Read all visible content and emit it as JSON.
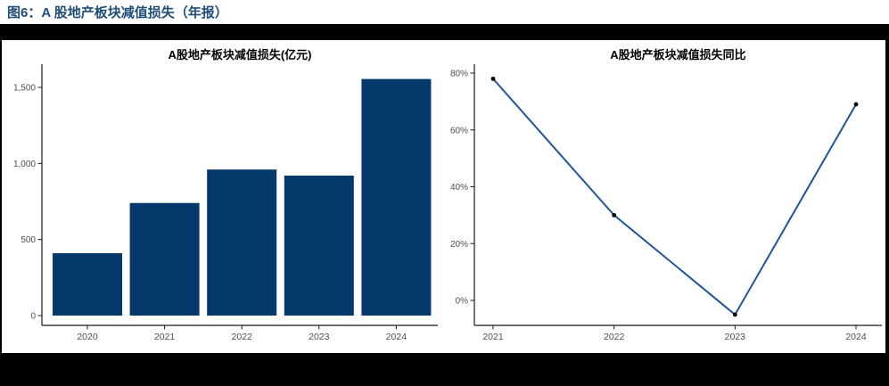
{
  "figure": {
    "caption": "图6：A 股地产板块减值损失（年报）"
  },
  "chart_data": [
    {
      "type": "bar",
      "title": "A股地产板块减值损失(亿元)",
      "categories": [
        "2020",
        "2021",
        "2022",
        "2023",
        "2024"
      ],
      "values": [
        410,
        740,
        960,
        920,
        1555
      ],
      "xlabel": "",
      "ylabel": "",
      "ylim": [
        0,
        1650
      ],
      "yticks": [
        0,
        500,
        1000,
        1500
      ],
      "ytick_labels": [
        "0",
        "500",
        "1,000",
        "1,500"
      ],
      "grid": false,
      "legend": "none",
      "bar_color": "#05386b"
    },
    {
      "type": "line",
      "title": "A股地产板块减值损失同比",
      "categories": [
        "2021",
        "2022",
        "2023",
        "2024"
      ],
      "values": [
        78,
        30,
        -5,
        69
      ],
      "unit": "%",
      "xlabel": "",
      "ylabel": "",
      "ylim": [
        -9,
        83
      ],
      "yticks": [
        0,
        20,
        40,
        60,
        80
      ],
      "ytick_labels": [
        "0%",
        "20%",
        "40%",
        "60%",
        "80%"
      ],
      "grid": false,
      "legend": "none",
      "line_color": "#1e549b",
      "marker_color": "#000000"
    }
  ],
  "colors": {
    "caption_text": "#1f4e79",
    "frame": "#000000",
    "axis_line": "#1a1a1a",
    "tick_text": "#4d4d4d",
    "background": "#ffffff"
  }
}
